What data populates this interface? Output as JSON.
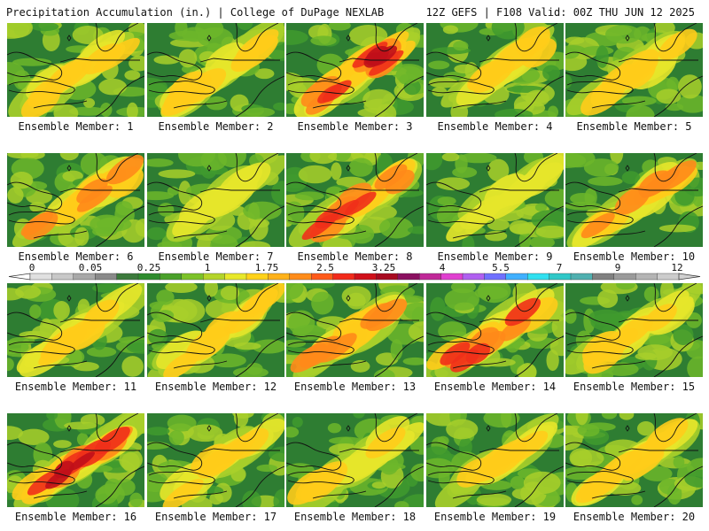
{
  "header": {
    "left_title": "Precipitation Accumulation (in.) | College of DuPage NEXLAB",
    "right_title": "12Z GEFS | F108 Valid: 00Z THU JUN 12 2025"
  },
  "members": [
    {
      "label": "Ensemble Member: 1",
      "intensity": 1.0
    },
    {
      "label": "Ensemble Member: 2",
      "intensity": 1.1
    },
    {
      "label": "Ensemble Member: 3",
      "intensity": 1.9
    },
    {
      "label": "Ensemble Member: 4",
      "intensity": 1.3
    },
    {
      "label": "Ensemble Member: 5",
      "intensity": 1.2
    },
    {
      "label": "Ensemble Member: 6",
      "intensity": 1.6
    },
    {
      "label": "Ensemble Member: 7",
      "intensity": 0.9
    },
    {
      "label": "Ensemble Member: 8",
      "intensity": 1.8
    },
    {
      "label": "Ensemble Member: 9",
      "intensity": 0.9
    },
    {
      "label": "Ensemble Member: 10",
      "intensity": 1.6
    },
    {
      "label": "Ensemble Member: 11",
      "intensity": 1.2
    },
    {
      "label": "Ensemble Member: 12",
      "intensity": 1.2
    },
    {
      "label": "Ensemble Member: 13",
      "intensity": 1.4
    },
    {
      "label": "Ensemble Member: 14",
      "intensity": 1.7
    },
    {
      "label": "Ensemble Member: 15",
      "intensity": 1.1
    },
    {
      "label": "Ensemble Member: 16",
      "intensity": 1.9
    },
    {
      "label": "Ensemble Member: 17",
      "intensity": 1.3
    },
    {
      "label": "Ensemble Member: 18",
      "intensity": 1.1
    },
    {
      "label": "Ensemble Member: 19",
      "intensity": 1.3
    },
    {
      "label": "Ensemble Member: 20",
      "intensity": 1.2
    }
  ],
  "colorbar": {
    "tick_labels": [
      "0",
      "0.05",
      "0.25",
      "1",
      "1.75",
      "2.5",
      "3.25",
      "4",
      "5.5",
      "7",
      "9",
      "12"
    ],
    "colors": [
      "#e0e0e0",
      "#c8c8c8",
      "#a8a8a8",
      "#8a8a8a",
      "#3c7a3c",
      "#2e8b2e",
      "#4aa02a",
      "#7cc229",
      "#b4d42a",
      "#e8e82a",
      "#ffd21a",
      "#ffb21a",
      "#ff8c1a",
      "#ff5a1a",
      "#f22a1a",
      "#d0101a",
      "#a80a20",
      "#8a1060",
      "#c02898",
      "#e040d0",
      "#b060f0",
      "#7070ff",
      "#40b0ff",
      "#30e0f0",
      "#30c8c8",
      "#50b0b0",
      "#808080",
      "#9a9a9a",
      "#b4b4b4",
      "#cccccc"
    ]
  }
}
